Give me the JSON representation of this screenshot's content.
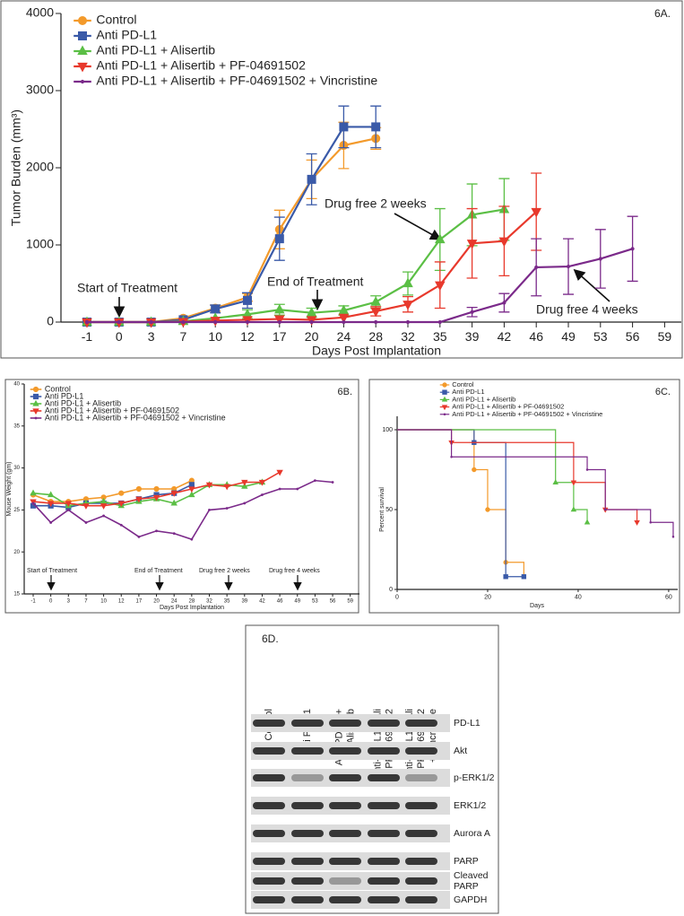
{
  "chart_data": [
    {
      "type": "line",
      "panel_label": "6A.",
      "x_label": "Days Post Implantation",
      "y_label": "Tumor Burden (mm³)",
      "categories": [
        "-1",
        "0",
        "3",
        "7",
        "10",
        "12",
        "17",
        "20",
        "24",
        "28",
        "32",
        "35",
        "39",
        "42",
        "46",
        "49",
        "53",
        "56",
        "59"
      ],
      "ylim": [
        0,
        4000
      ],
      "yticks": [
        0,
        1000,
        2000,
        3000,
        4000
      ],
      "legend": "upper left",
      "annotations": [
        "Start of Treatment",
        "End of Treatment",
        "Drug free 2 weeks",
        "Drug free 4 weeks"
      ],
      "series": [
        {
          "name": "Control",
          "color": "#f39a2b",
          "marker": "circle",
          "values": [
            0,
            0,
            0,
            50,
            180,
            320,
            1200,
            1850,
            2290,
            2380,
            null,
            null,
            null,
            null,
            null,
            null,
            null,
            null,
            null
          ],
          "errors": [
            null,
            null,
            null,
            null,
            40,
            50,
            250,
            250,
            300,
            140,
            null,
            null,
            null,
            null,
            null,
            null,
            null,
            null,
            null
          ]
        },
        {
          "name": "Anti PD-L1",
          "color": "#3a5aa8",
          "marker": "square",
          "values": [
            0,
            0,
            0,
            30,
            170,
            280,
            1080,
            1850,
            2530,
            2530,
            null,
            null,
            null,
            null,
            null,
            null,
            null,
            null,
            null
          ],
          "errors": [
            null,
            null,
            null,
            null,
            50,
            100,
            280,
            330,
            270,
            270,
            null,
            null,
            null,
            null,
            null,
            null,
            null,
            null,
            null
          ]
        },
        {
          "name": "Anti PD-L1 + Alisertib",
          "color": "#5bbf45",
          "marker": "triangle-up",
          "values": [
            0,
            0,
            0,
            10,
            50,
            100,
            160,
            120,
            150,
            260,
            500,
            1070,
            1390,
            1460,
            null,
            null,
            null,
            null,
            null
          ],
          "errors": [
            null,
            null,
            null,
            null,
            null,
            60,
            70,
            60,
            60,
            80,
            150,
            400,
            400,
            400,
            null,
            null,
            null,
            null,
            null
          ]
        },
        {
          "name": "Anti PD-L1 + Alisertib + PF-04691502",
          "color": "#e8392c",
          "marker": "triangle-down",
          "values": [
            0,
            0,
            0,
            5,
            20,
            30,
            40,
            30,
            60,
            140,
            230,
            480,
            1020,
            1050,
            1430,
            null,
            null,
            null,
            null
          ],
          "errors": [
            null,
            null,
            null,
            null,
            null,
            null,
            null,
            null,
            null,
            60,
            100,
            300,
            450,
            450,
            500,
            null,
            null,
            null,
            null
          ]
        },
        {
          "name": "Anti PD-L1 + Alisertib + PF-04691502 + Vincristine",
          "color": "#7b2a8a",
          "marker": "none",
          "values": [
            0,
            0,
            0,
            0,
            0,
            0,
            0,
            0,
            0,
            0,
            0,
            0,
            130,
            250,
            710,
            720,
            820,
            950,
            null
          ],
          "errors": [
            null,
            null,
            null,
            null,
            null,
            null,
            null,
            null,
            null,
            null,
            null,
            null,
            60,
            120,
            370,
            360,
            380,
            420,
            null
          ]
        }
      ]
    },
    {
      "type": "line",
      "panel_label": "6B.",
      "x_label": "Days Post Implantation",
      "y_label": "Mouse Weight (gm)",
      "categories": [
        "-1",
        "0",
        "3",
        "7",
        "10",
        "12",
        "17",
        "20",
        "24",
        "28",
        "32",
        "35",
        "39",
        "42",
        "46",
        "49",
        "53",
        "56",
        "59"
      ],
      "ylim": [
        15,
        40
      ],
      "yticks": [
        15,
        20,
        25,
        30,
        35,
        40
      ],
      "legend": "upper left",
      "annotations": [
        "Start of Treatment",
        "End of Treatment",
        "Drug free 2 weeks",
        "Drug free 4 weeks"
      ],
      "series": [
        {
          "name": "Control",
          "color": "#f39a2b",
          "marker": "circle",
          "values": [
            26.8,
            26,
            26,
            26.3,
            26.5,
            27,
            27.5,
            27.5,
            27.5,
            28.5,
            null,
            null,
            null,
            null,
            null,
            null,
            null,
            null,
            null
          ]
        },
        {
          "name": "Anti PD-L1",
          "color": "#3a5aa8",
          "marker": "square",
          "values": [
            25.5,
            25.5,
            25.3,
            25.8,
            25.8,
            25.8,
            26.3,
            26.8,
            27,
            28,
            null,
            null,
            null,
            null,
            null,
            null,
            null,
            null,
            null
          ]
        },
        {
          "name": "Anti PD-L1 + Alisertib",
          "color": "#5bbf45",
          "marker": "triangle-up",
          "values": [
            27,
            26.8,
            25.5,
            25.8,
            26,
            25.5,
            26,
            26.3,
            25.8,
            26.8,
            28,
            28,
            27.8,
            28.3,
            null,
            null,
            null,
            null,
            null
          ]
        },
        {
          "name": "Anti PD-L1 + Alisertib + PF-04691502",
          "color": "#e8392c",
          "marker": "triangle-down",
          "values": [
            26,
            25.8,
            25.8,
            25.5,
            25.5,
            25.8,
            26.3,
            26.5,
            27,
            27.5,
            28,
            27.8,
            28.3,
            28.3,
            29.5,
            null,
            null,
            null,
            null
          ]
        },
        {
          "name": "Anti PD-L1 + Alisertib + PF-04691502 + Vincristine",
          "color": "#7b2a8a",
          "marker": "none",
          "values": [
            25.8,
            23.5,
            25,
            23.5,
            24.3,
            23.2,
            21.8,
            22.5,
            22.2,
            21.5,
            25,
            25.2,
            25.8,
            26.8,
            27.5,
            27.5,
            28.5,
            28.3,
            null
          ]
        }
      ]
    },
    {
      "type": "step",
      "panel_label": "6C.",
      "x_label": "Days",
      "y_label": "Percent survival",
      "xlim": [
        0,
        62
      ],
      "xticks": [
        0,
        20,
        40,
        60
      ],
      "ylim": [
        0,
        100
      ],
      "yticks": [
        0,
        50,
        100
      ],
      "legend": "upper center",
      "series": [
        {
          "name": "Control",
          "color": "#f39a2b",
          "marker": "circle",
          "x": [
            0,
            17,
            20,
            24,
            28
          ],
          "values": [
            100,
            75,
            50,
            17,
            8
          ]
        },
        {
          "name": "Anti PD-L1",
          "color": "#3a5aa8",
          "marker": "square",
          "x": [
            0,
            17,
            24,
            28
          ],
          "values": [
            100,
            92,
            8,
            8
          ]
        },
        {
          "name": "Anti PD-L1 + Alisertib",
          "color": "#5bbf45",
          "marker": "triangle-up",
          "x": [
            0,
            35,
            39,
            42
          ],
          "values": [
            100,
            67,
            50,
            42
          ]
        },
        {
          "name": "Anti PD-L1 + Alisertib + PF-04691502",
          "color": "#e8392c",
          "marker": "triangle-down",
          "x": [
            0,
            12,
            39,
            46,
            53
          ],
          "values": [
            100,
            92,
            67,
            50,
            42
          ]
        },
        {
          "name": "Anti PD-L1 + Alisertib + PF-04691502 + Vincristine",
          "color": "#7b2a8a",
          "marker": "none",
          "x": [
            0,
            12,
            42,
            46,
            56,
            61
          ],
          "values": [
            100,
            83,
            75,
            50,
            42,
            33
          ]
        }
      ]
    }
  ],
  "blot": {
    "panel_label": "6D.",
    "lanes": [
      [
        "Control"
      ],
      [
        "Anti PD-L1"
      ],
      [
        "Anti-PD-L1 +",
        "Alisertib"
      ],
      [
        "Anti-PD-L1 + Ali",
        "+ PF-04691502"
      ],
      [
        "Anti-PD-L1 + Ali",
        "+ PF-04691502",
        "+ Vincristine"
      ]
    ],
    "rows": [
      [
        "PD-L1"
      ],
      [
        "Akt"
      ],
      [
        "p-ERK1/2"
      ],
      [
        "ERK1/2"
      ],
      [
        "Aurora A"
      ],
      [
        "PARP"
      ],
      [
        "Cleaved",
        "PARP"
      ],
      [
        "GAPDH"
      ]
    ]
  }
}
